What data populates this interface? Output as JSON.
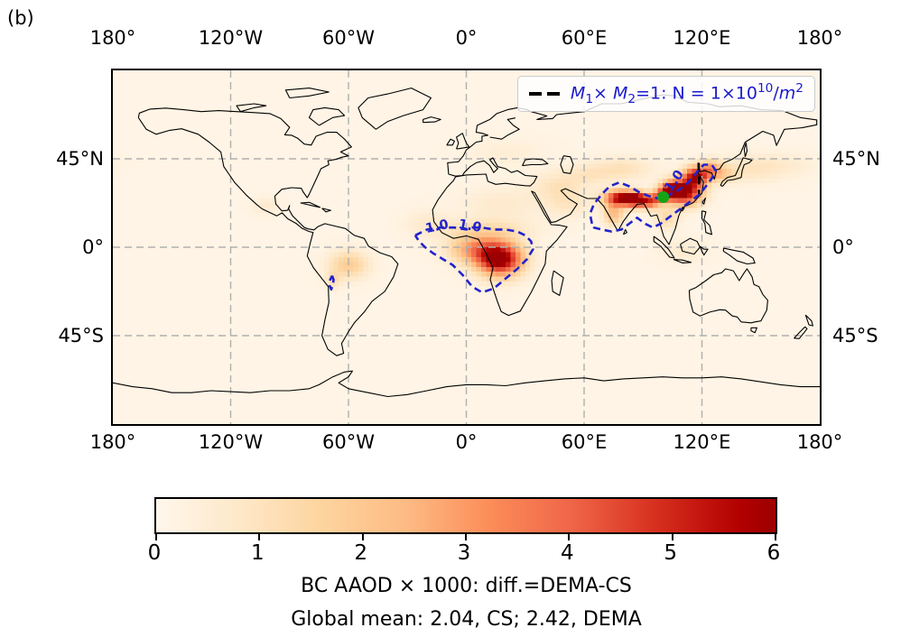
{
  "panel_label": "(b)",
  "axes": {
    "top_ticks": [
      "180°",
      "120°W",
      "60°W",
      "0°",
      "60°E",
      "120°E",
      "180°"
    ],
    "bottom_ticks": [
      "180°",
      "120°W",
      "60°W",
      "0°",
      "60°E",
      "120°E",
      "180°"
    ],
    "left_ticks": [
      "45°N",
      "0°",
      "45°S"
    ],
    "right_ticks": [
      "45°N",
      "0°",
      "45°S"
    ]
  },
  "legend": {
    "symbol": "black-dashed-line",
    "text_plain": "M1× M2=1: N = 1×10^10/m^2",
    "parts": {
      "m1": "M",
      "sub1": "1",
      "times": "× ",
      "m2": "M",
      "sub2": "2",
      "mid": "=1: N = 1×10",
      "sup1": "10",
      "slash": "/",
      "m3": "m",
      "sup2": "2"
    }
  },
  "captions": {
    "line1": "BC AAOD × 1000: diff.=DEMA-CS",
    "line2": "Global mean: 2.04, CS; 2.42, DEMA"
  },
  "colorbar": {
    "min": 0,
    "max": 6,
    "ticks": [
      "0",
      "1",
      "2",
      "3",
      "4",
      "5",
      "6"
    ]
  },
  "colors": {
    "legend_blue": "#1a1acd",
    "contour_blue": "#2323cc",
    "marker_green": "#16a316",
    "gridline_gray": "#b0b0b0",
    "coastline": "#000000",
    "colormap_low": "#fff7ec",
    "colormap_high": "#9c0000"
  },
  "chart_data": {
    "type": "heatmap",
    "projection": "equirectangular",
    "lon_range": [
      -180,
      180
    ],
    "lat_range": [
      -90,
      90
    ],
    "field_label": "BC AAOD × 1000 difference (DEMA - CS)",
    "global_mean": {
      "CS": 2.04,
      "DEMA": 2.42
    },
    "colormap": "OrRd",
    "value_range": [
      0,
      6
    ],
    "grid_deg": 2.5,
    "background_value": 0.15,
    "hotspots": [
      {
        "name": "central-africa-core",
        "lon": 17,
        "lat": -6,
        "sx": 8,
        "sy": 6,
        "amp": 6.2
      },
      {
        "name": "west-africa",
        "lon": 4,
        "lat": -1,
        "sx": 9,
        "sy": 5,
        "amp": 2.6
      },
      {
        "name": "sahel-band",
        "lon": 10,
        "lat": 9,
        "sx": 16,
        "sy": 4,
        "amp": 1.0
      },
      {
        "name": "atlantic-outflow",
        "lon": -20,
        "lat": 12,
        "sx": 8,
        "sy": 5,
        "amp": 0.5
      },
      {
        "name": "sahara",
        "lon": 18,
        "lat": 22,
        "sx": 14,
        "sy": 6,
        "amp": 0.55
      },
      {
        "name": "amazon",
        "lon": -60,
        "lat": -9,
        "sx": 7,
        "sy": 5,
        "amp": 1.7
      },
      {
        "name": "andes",
        "lon": -68,
        "lat": -17,
        "sx": 2.5,
        "sy": 3,
        "amp": 1.0
      },
      {
        "name": "mexico",
        "lon": -102,
        "lat": 21,
        "sx": 5,
        "sy": 3,
        "amp": 0.5
      },
      {
        "name": "indo-gangetic",
        "lon": 79,
        "lat": 25,
        "sx": 6,
        "sy": 2.8,
        "amp": 5.6
      },
      {
        "name": "bangladesh",
        "lon": 87,
        "lat": 24,
        "sx": 4,
        "sy": 2.5,
        "amp": 5.2
      },
      {
        "name": "south-india",
        "lon": 75,
        "lat": 17,
        "sx": 3.5,
        "sy": 4,
        "amp": 2.2
      },
      {
        "name": "myanmar",
        "lon": 94,
        "lat": 23,
        "sx": 3,
        "sy": 2.5,
        "amp": 3.0
      },
      {
        "name": "south-china",
        "lon": 111,
        "lat": 28,
        "sx": 6,
        "sy": 4.5,
        "amp": 6.0
      },
      {
        "name": "north-china-plain",
        "lon": 117,
        "lat": 36,
        "sx": 4.5,
        "sy": 3.5,
        "amp": 5.0
      },
      {
        "name": "sichuan",
        "lon": 104,
        "lat": 29,
        "sx": 3.5,
        "sy": 3,
        "amp": 4.2
      },
      {
        "name": "yunnan",
        "lon": 99,
        "lat": 26,
        "sx": 3,
        "sy": 2.5,
        "amp": 3.2
      },
      {
        "name": "northeast-china",
        "lon": 124,
        "lat": 40,
        "sx": 4,
        "sy": 3,
        "amp": 2.2
      },
      {
        "name": "korea-japan",
        "lon": 130,
        "lat": 37,
        "sx": 5,
        "sy": 3,
        "amp": 1.4
      },
      {
        "name": "pacific-outflow",
        "lon": 145,
        "lat": 40,
        "sx": 12,
        "sy": 5,
        "amp": 0.8
      },
      {
        "name": "north-pacific",
        "lon": 165,
        "lat": 42,
        "sx": 10,
        "sy": 4,
        "amp": 0.35
      },
      {
        "name": "tarim",
        "lon": 80,
        "lat": 40,
        "sx": 10,
        "sy": 4,
        "amp": 0.9
      },
      {
        "name": "central-asia",
        "lon": 62,
        "lat": 37,
        "sx": 9,
        "sy": 4,
        "amp": 0.7
      },
      {
        "name": "middle-east",
        "lon": 46,
        "lat": 31,
        "sx": 9,
        "sy": 5,
        "amp": 0.8
      },
      {
        "name": "arabia",
        "lon": 52,
        "lat": 22,
        "sx": 8,
        "sy": 5,
        "amp": 0.7
      },
      {
        "name": "indochina",
        "lon": 102,
        "lat": 15,
        "sx": 4,
        "sy": 4,
        "amp": 1.2
      },
      {
        "name": "indonesia",
        "lon": 110,
        "lat": -2,
        "sx": 8,
        "sy": 4,
        "amp": 0.5
      },
      {
        "name": "europe",
        "lon": 20,
        "lat": 48,
        "sx": 14,
        "sy": 5,
        "amp": 0.35
      }
    ],
    "blue_contours": {
      "level": 1.0,
      "meaning": "N = 1×10^10/m^2",
      "polylines": [
        [
          [
            -26,
            6
          ],
          [
            -20,
            9
          ],
          [
            -13,
            10
          ],
          [
            -6,
            10
          ],
          [
            0,
            9
          ],
          [
            3,
            10
          ],
          [
            8,
            10
          ],
          [
            14,
            9
          ],
          [
            20,
            9
          ],
          [
            26,
            8
          ],
          [
            30,
            6
          ],
          [
            33,
            3
          ],
          [
            34,
            -1
          ],
          [
            31,
            -6
          ],
          [
            26,
            -11
          ],
          [
            20,
            -16
          ],
          [
            14,
            -21
          ],
          [
            8,
            -23
          ],
          [
            3,
            -20
          ],
          [
            -2,
            -14
          ],
          [
            -7,
            -9
          ],
          [
            -12,
            -6
          ],
          [
            -17,
            -3
          ],
          [
            -21,
            0
          ],
          [
            -24,
            3
          ],
          [
            -26,
            6
          ]
        ],
        [
          [
            64,
            12
          ],
          [
            63,
            17
          ],
          [
            65,
            22
          ],
          [
            69,
            27
          ],
          [
            73,
            31
          ],
          [
            78,
            33
          ],
          [
            83,
            31
          ],
          [
            88,
            28
          ],
          [
            93,
            26
          ],
          [
            97,
            25
          ],
          [
            101,
            25
          ],
          [
            104,
            27
          ],
          [
            108,
            29
          ],
          [
            112,
            32
          ],
          [
            115,
            35
          ],
          [
            118,
            39
          ],
          [
            121,
            42
          ],
          [
            125,
            42
          ],
          [
            127,
            39
          ],
          [
            125,
            35
          ],
          [
            122,
            31
          ],
          [
            119,
            27
          ],
          [
            115,
            24
          ],
          [
            111,
            21
          ],
          [
            107,
            18
          ],
          [
            103,
            15
          ],
          [
            99,
            12
          ],
          [
            95,
            10
          ],
          [
            91,
            12
          ],
          [
            87,
            15
          ],
          [
            83,
            12
          ],
          [
            79,
            9
          ],
          [
            74,
            8
          ],
          [
            69,
            9
          ],
          [
            65,
            10
          ],
          [
            64,
            12
          ]
        ],
        [
          [
            -68.3,
            -14.5
          ],
          [
            -67.6,
            -16.5
          ],
          [
            -67.9,
            -19
          ],
          [
            -68.8,
            -21.5
          ],
          [
            -69.6,
            -19.5
          ],
          [
            -69.3,
            -16.5
          ],
          [
            -68.3,
            -14.5
          ]
        ]
      ]
    },
    "black_contour": {
      "meaning": "M1 × M2 = 1",
      "polylines": [
        [
          [
            118.3,
            43
          ],
          [
            118.4,
            39
          ],
          [
            118.6,
            35
          ],
          [
            118.3,
            31
          ],
          [
            118.5,
            27.5
          ],
          [
            118.3,
            26
          ]
        ]
      ]
    },
    "contour_labels": [
      {
        "text": "1.0",
        "lon": -14.5,
        "lat": 8.5,
        "rot": -12
      },
      {
        "text": "1.0",
        "lon": 1.5,
        "lat": 8.8,
        "rot": 10
      },
      {
        "text": "1.0",
        "lon": 107.5,
        "lat": 32.5,
        "rot": -55
      }
    ],
    "marker": {
      "name": "site-marker",
      "lon": 100.3,
      "lat": 25.5,
      "color": "#16a316",
      "radius_px": 6.5
    },
    "gridlines": {
      "lons": [
        -120,
        -60,
        0,
        60,
        120
      ],
      "lats": [
        45,
        0,
        -45
      ]
    }
  }
}
